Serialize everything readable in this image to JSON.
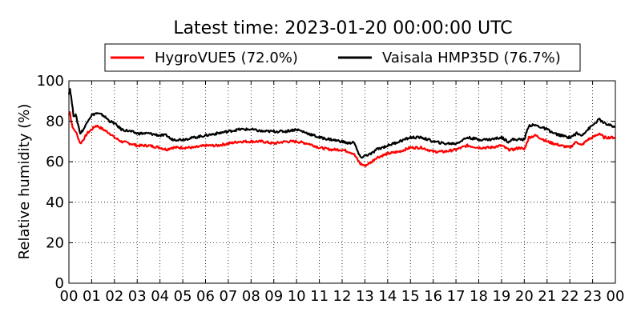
{
  "chart_data": {
    "type": "line",
    "title": "Latest time: 2023-01-20 00:00:00 UTC",
    "xlabel": "",
    "ylabel": "Relative humidity (%)",
    "ylim": [
      0,
      100
    ],
    "xlim": [
      0,
      24
    ],
    "x_ticks": [
      "00",
      "01",
      "02",
      "03",
      "04",
      "05",
      "06",
      "07",
      "08",
      "09",
      "10",
      "11",
      "12",
      "13",
      "14",
      "15",
      "16",
      "17",
      "18",
      "19",
      "20",
      "21",
      "22",
      "23",
      "00"
    ],
    "y_ticks": [
      0,
      20,
      40,
      60,
      80,
      100
    ],
    "grid": true,
    "legend": "top, above plot",
    "series": [
      {
        "name": "HygroVUE5 (72.0%)",
        "color": "#ff0000",
        "x": [
          0.0,
          0.05,
          0.1,
          0.2,
          0.3,
          0.5,
          0.7,
          0.8,
          1.0,
          1.2,
          1.5,
          1.8,
          2.0,
          2.3,
          2.7,
          3.0,
          3.5,
          4.0,
          4.3,
          4.5,
          5.0,
          5.5,
          6.0,
          6.5,
          7.0,
          7.5,
          8.0,
          8.5,
          9.0,
          9.5,
          10.0,
          10.5,
          11.0,
          11.5,
          12.0,
          12.3,
          12.5,
          12.8,
          13.0,
          13.3,
          13.5,
          14.0,
          14.5,
          15.0,
          15.5,
          16.0,
          16.5,
          17.0,
          17.5,
          18.0,
          18.5,
          19.0,
          19.3,
          19.5,
          19.8,
          20.0,
          20.2,
          20.5,
          21.0,
          21.3,
          21.6,
          22.0,
          22.3,
          22.5,
          22.8,
          23.0,
          23.3,
          23.5,
          24.0
        ],
        "y": [
          83,
          85,
          80,
          76,
          75,
          69,
          72,
          74,
          76,
          78,
          76,
          74,
          72,
          70,
          69,
          68,
          68,
          67,
          66,
          67,
          67,
          67,
          68,
          68,
          69,
          70,
          70,
          70,
          69,
          70,
          70,
          69,
          67,
          66,
          66,
          65,
          64,
          59,
          58,
          60,
          62,
          64,
          65,
          67,
          67,
          65,
          65,
          66,
          68,
          67,
          67,
          68,
          66,
          66,
          67,
          66,
          72,
          73,
          70,
          69,
          68,
          67,
          70,
          68,
          71,
          72,
          74,
          72,
          72
        ]
      },
      {
        "name": "Vaisala HMP35D (76.7%)",
        "color": "#000000",
        "x": [
          0.0,
          0.05,
          0.1,
          0.2,
          0.3,
          0.5,
          0.7,
          0.8,
          1.0,
          1.2,
          1.5,
          1.8,
          2.0,
          2.3,
          2.7,
          3.0,
          3.5,
          4.0,
          4.3,
          4.5,
          5.0,
          5.5,
          6.0,
          6.5,
          7.0,
          7.5,
          8.0,
          8.5,
          9.0,
          9.5,
          10.0,
          10.5,
          11.0,
          11.5,
          12.0,
          12.3,
          12.5,
          12.8,
          13.0,
          13.3,
          13.5,
          14.0,
          14.5,
          15.0,
          15.5,
          16.0,
          16.5,
          17.0,
          17.5,
          18.0,
          18.5,
          19.0,
          19.3,
          19.5,
          19.8,
          20.0,
          20.2,
          20.5,
          21.0,
          21.3,
          21.6,
          22.0,
          22.3,
          22.5,
          22.8,
          23.0,
          23.3,
          23.5,
          24.0
        ],
        "y": [
          94,
          96,
          92,
          83,
          83,
          74,
          77,
          80,
          83,
          84,
          83,
          80,
          79,
          76,
          75,
          74,
          74,
          73,
          73,
          71,
          71,
          72,
          73,
          74,
          75,
          76,
          76,
          75,
          75,
          75,
          76,
          74,
          72,
          71,
          70,
          69,
          70,
          62,
          63,
          64,
          66,
          68,
          70,
          72,
          72,
          70,
          69,
          69,
          72,
          71,
          71,
          72,
          70,
          71,
          71,
          71,
          78,
          78,
          76,
          74,
          73,
          72,
          74,
          73,
          76,
          78,
          81,
          79,
          77
        ]
      }
    ]
  }
}
